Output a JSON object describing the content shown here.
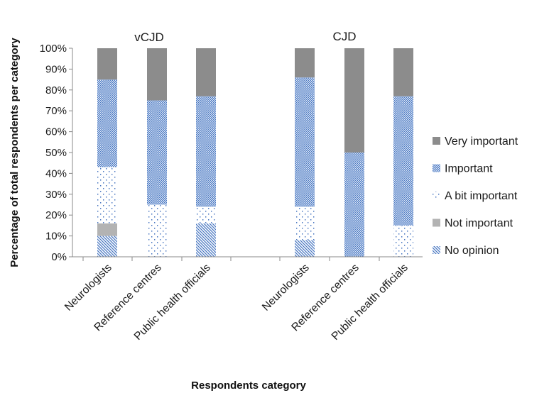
{
  "chart_data": {
    "type": "bar",
    "stacked": true,
    "percent": true,
    "ylabel": "Percentage of total respondents per category",
    "xlabel": "Respondents category",
    "ylim": [
      0,
      100
    ],
    "yticks": [
      "0%",
      "10%",
      "20%",
      "30%",
      "40%",
      "50%",
      "60%",
      "70%",
      "80%",
      "90%",
      "100%"
    ],
    "groups": [
      {
        "label": "vCJD",
        "categories": [
          "Neurologists",
          "Reference centres",
          "Public health officials"
        ]
      },
      {
        "label": "CJD",
        "categories": [
          "Neurologists",
          "Reference centres",
          "Public health officials"
        ]
      }
    ],
    "categories": [
      "Neurologists",
      "Reference centres",
      "Public health officials",
      "Neurologists",
      "Reference centres",
      "Public health officials"
    ],
    "series": [
      {
        "name": "No opinion",
        "pattern": "diagonal",
        "color": "#4a78c2",
        "values": [
          10,
          0,
          16,
          8,
          0,
          0
        ]
      },
      {
        "name": "Not important",
        "pattern": "solid",
        "color": "#b3b3b3",
        "values": [
          6,
          0,
          0,
          0,
          0,
          0
        ]
      },
      {
        "name": "A bit important",
        "pattern": "dotted",
        "color": "#4a78c2",
        "values": [
          27,
          25,
          8,
          16,
          0,
          15
        ]
      },
      {
        "name": "Important",
        "pattern": "checker",
        "color": "#4a78c2",
        "values": [
          42,
          50,
          53,
          62,
          50,
          62
        ]
      },
      {
        "name": "Very important",
        "pattern": "solid",
        "color": "#8c8c8c",
        "values": [
          15,
          25,
          23,
          14,
          50,
          23
        ]
      }
    ],
    "legend_position": "right",
    "grid": false
  }
}
